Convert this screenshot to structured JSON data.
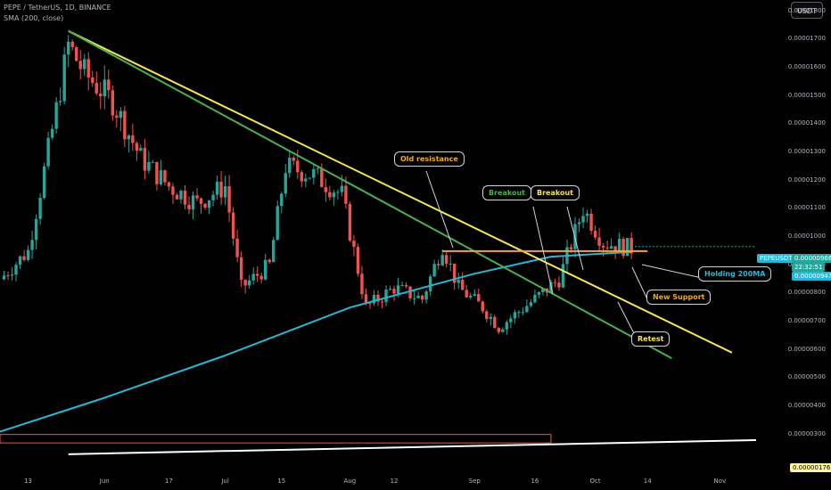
{
  "header": {
    "symbol_line": "PEPE / TetherUS, 1D, BINANCE",
    "indicator_line": "SMA (200, close)"
  },
  "currency_button": "USDT",
  "badges": {
    "symbol": "PEPEUSDT",
    "price": "0.00000966",
    "countdown": "22:32:51",
    "sma": "0.00000947",
    "line_value": "0.00000176"
  },
  "colors": {
    "background": "#000000",
    "up_candle": "#26a69a",
    "down_candle": "#ef5350",
    "sma": "#29b6d6",
    "yellow_trend": "#f3e45b",
    "green_trend": "#4caf50",
    "horizontal_level": "#f5a623",
    "lower_trendline": "#ffffff",
    "zone": "#ef5350"
  },
  "chart_data": {
    "type": "candlestick",
    "title": "PEPE / TetherUS, 1D, BINANCE",
    "indicator": "SMA (200, close)",
    "y_axis": {
      "ticks": [
        "0.00001800",
        "0.00001700",
        "0.00001600",
        "0.00001500",
        "0.00001400",
        "0.00001300",
        "0.00001200",
        "0.00001100",
        "0.00001000",
        "0.00000900",
        "0.00000800",
        "0.00000700",
        "0.00000600",
        "0.00000500",
        "0.00000400",
        "0.00000300"
      ],
      "range": [
        1.6e-06,
        1.84e-05
      ]
    },
    "x_axis": {
      "ticks": [
        "13",
        "Jun",
        "17",
        "Jul",
        "15",
        "Aug",
        "12",
        "Sep",
        "16",
        "Oct",
        "14",
        "Nov"
      ],
      "range": [
        "2024-05-06",
        "2024-11-10"
      ]
    },
    "ohlc_anchors": [
      {
        "date": "2024-05-06",
        "close": 8.5e-06
      },
      {
        "date": "2024-05-13",
        "close": 9.5e-06
      },
      {
        "date": "2024-05-20",
        "close": 1.45e-05
      },
      {
        "date": "2024-05-23",
        "close": 1.68e-05
      },
      {
        "date": "2024-05-27",
        "close": 1.58e-05
      },
      {
        "date": "2024-06-03",
        "close": 1.48e-05
      },
      {
        "date": "2024-06-10",
        "close": 1.28e-05
      },
      {
        "date": "2024-06-17",
        "close": 1.18e-05
      },
      {
        "date": "2024-06-24",
        "close": 1.12e-05
      },
      {
        "date": "2024-07-01",
        "close": 1.18e-05
      },
      {
        "date": "2024-07-05",
        "close": 8.2e-06
      },
      {
        "date": "2024-07-12",
        "close": 9e-06
      },
      {
        "date": "2024-07-16",
        "close": 1.25e-05
      },
      {
        "date": "2024-07-23",
        "close": 1.22e-05
      },
      {
        "date": "2024-07-30",
        "close": 1.15e-05
      },
      {
        "date": "2024-08-05",
        "close": 7.5e-06
      },
      {
        "date": "2024-08-12",
        "close": 8.2e-06
      },
      {
        "date": "2024-08-19",
        "close": 7.8e-06
      },
      {
        "date": "2024-08-24",
        "close": 9.7e-06
      },
      {
        "date": "2024-08-28",
        "close": 8.2e-06
      },
      {
        "date": "2024-09-03",
        "close": 7.5e-06
      },
      {
        "date": "2024-09-07",
        "close": 6.8e-06
      },
      {
        "date": "2024-09-16",
        "close": 7.8e-06
      },
      {
        "date": "2024-09-22",
        "close": 8.5e-06
      },
      {
        "date": "2024-09-28",
        "close": 1.1e-05
      },
      {
        "date": "2024-10-03",
        "close": 9.8e-06
      },
      {
        "date": "2024-10-10",
        "close": 9.6e-06
      }
    ],
    "sma": [
      {
        "date": "2024-05-06",
        "value": 3.1e-06
      },
      {
        "date": "2024-06-01",
        "value": 4.3e-06
      },
      {
        "date": "2024-07-01",
        "value": 5.8e-06
      },
      {
        "date": "2024-08-01",
        "value": 7.5e-06
      },
      {
        "date": "2024-09-01",
        "value": 8.7e-06
      },
      {
        "date": "2024-09-20",
        "value": 9.3e-06
      },
      {
        "date": "2024-10-10",
        "value": 9.47e-06
      }
    ],
    "drawings": [
      {
        "kind": "trendline",
        "name": "yellow",
        "points": [
          {
            "date": "2024-05-23",
            "value": 1.73e-05
          },
          {
            "date": "2024-11-04",
            "value": 5.9e-06
          }
        ]
      },
      {
        "kind": "trendline",
        "name": "green",
        "points": [
          {
            "date": "2024-05-23",
            "value": 1.73e-05
          },
          {
            "date": "2024-10-20",
            "value": 5.7e-06
          }
        ]
      },
      {
        "kind": "horizontal",
        "name": "level",
        "value": 9.5e-06,
        "from": "2024-08-24",
        "to": "2024-10-14"
      },
      {
        "kind": "trendline",
        "name": "lower",
        "points": [
          {
            "date": "2024-05-23",
            "value": 2.3e-06
          },
          {
            "date": "2024-11-10",
            "value": 2.8e-06
          }
        ]
      },
      {
        "kind": "zone",
        "name": "red-zone",
        "from": "2024-05-06",
        "to": "2024-09-20",
        "bottom": 2.7e-06,
        "top": 3e-06
      }
    ],
    "annotations": [
      "Old resistance",
      "Breakout",
      "Breakout",
      "Holding 200MA",
      "New Support",
      "Retest"
    ]
  },
  "annotations": {
    "old_resistance": "Old resistance",
    "breakout_green": "Breakout",
    "breakout_yellow": "Breakout",
    "holding": "Holding 200MA",
    "new_support": "New Support",
    "retest": "Retest"
  }
}
